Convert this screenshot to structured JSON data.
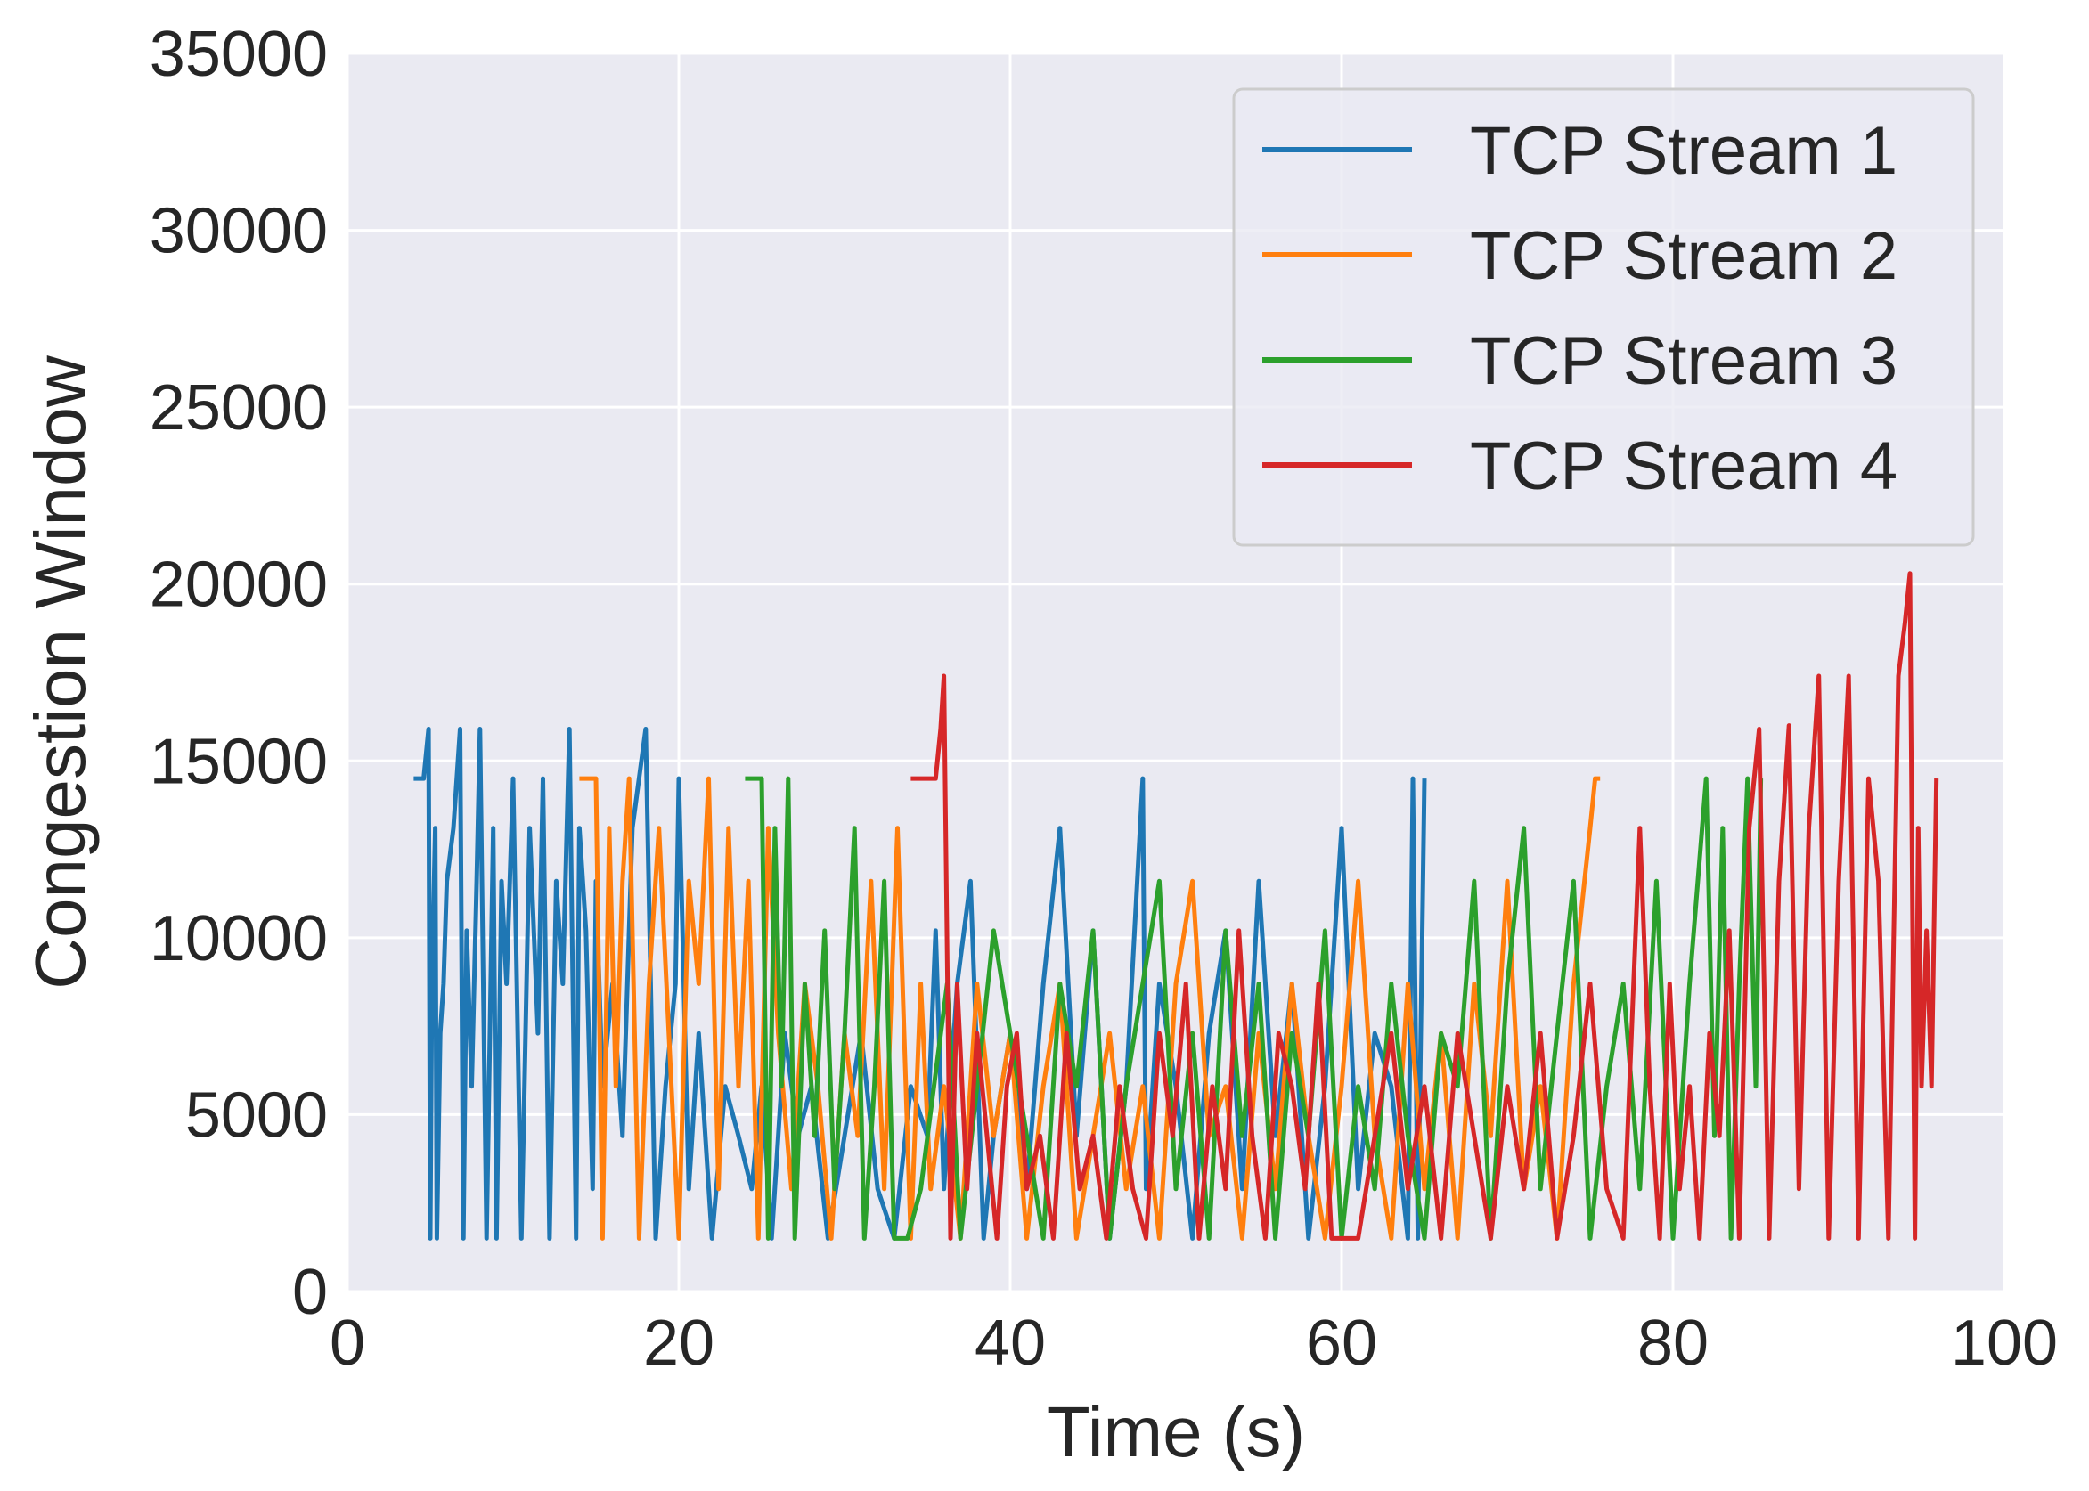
{
  "chart_data": {
    "type": "line",
    "title": "",
    "xlabel": "Time (s)",
    "ylabel": "Congestion Window",
    "xlim": [
      0,
      100
    ],
    "ylim": [
      0,
      35000
    ],
    "xticks": [
      0,
      20,
      40,
      60,
      80,
      100
    ],
    "yticks": [
      0,
      5000,
      10000,
      15000,
      20000,
      25000,
      30000,
      35000
    ],
    "xtick_labels": [
      "0",
      "20",
      "40",
      "60",
      "80",
      "100"
    ],
    "ytick_labels": [
      "0",
      "5000",
      "10000",
      "15000",
      "20000",
      "25000",
      "30000",
      "35000"
    ],
    "grid": true,
    "legend_position": "top-right",
    "style": {
      "background": "#EAEAF2",
      "grid_color": "#FFFFFF"
    },
    "series": [
      {
        "name": "TCP Stream 1",
        "color": "#1F77B4",
        "x": [
          4.0,
          4.6,
          4.9,
          5.0,
          5.1,
          5.3,
          5.4,
          5.6,
          5.8,
          6.0,
          6.4,
          6.8,
          7.0,
          7.2,
          7.5,
          7.8,
          8.0,
          8.4,
          8.8,
          9.0,
          9.3,
          9.6,
          10.0,
          10.5,
          11.0,
          11.5,
          11.8,
          12.2,
          12.6,
          13.0,
          13.4,
          13.8,
          14.0,
          14.4,
          14.8,
          15.0,
          15.4,
          16.0,
          16.6,
          17.2,
          18.0,
          18.6,
          19.2,
          19.8,
          20.0,
          20.6,
          21.2,
          22.0,
          22.8,
          23.6,
          24.4,
          25.0,
          25.6,
          26.4,
          27.2,
          28.0,
          29.0,
          30.0,
          31.0,
          32.0,
          33.0,
          34.0,
          35.0,
          35.5,
          36.0,
          36.8,
          37.6,
          38.4,
          39.0,
          40.0,
          41.0,
          42.0,
          43.0,
          44.0,
          45.0,
          46.0,
          47.0,
          48.0,
          48.2,
          49.0,
          50.0,
          51.0,
          52.0,
          53.0,
          54.0,
          55.0,
          56.0,
          57.0,
          58.0,
          59.0,
          60.0,
          61.0,
          62.0,
          63.0,
          64.0,
          64.3,
          64.6,
          65.0
        ],
        "y": [
          14500,
          14500,
          15900,
          1500,
          8700,
          13100,
          1500,
          7300,
          8700,
          11600,
          13100,
          15900,
          1500,
          10200,
          5800,
          11600,
          15900,
          1500,
          13100,
          1500,
          11600,
          8700,
          14500,
          1500,
          13100,
          7300,
          14500,
          1500,
          11600,
          8700,
          15900,
          1500,
          13100,
          10200,
          2900,
          11600,
          5800,
          8700,
          4400,
          13100,
          15900,
          1500,
          5800,
          8700,
          14500,
          2900,
          7300,
          1500,
          5800,
          4400,
          2900,
          5800,
          1500,
          7300,
          4400,
          5800,
          1500,
          4400,
          7300,
          2900,
          1500,
          5800,
          4400,
          10200,
          2900,
          8700,
          11600,
          1500,
          4400,
          7300,
          2900,
          8700,
          13100,
          4400,
          10200,
          1500,
          5800,
          14500,
          2900,
          8700,
          5800,
          1500,
          7300,
          10200,
          2900,
          11600,
          4400,
          8700,
          1500,
          5800,
          13100,
          2900,
          7300,
          5800,
          1500,
          14500,
          1500,
          14500
        ]
      },
      {
        "name": "TCP Stream 2",
        "color": "#FF7F0E",
        "x": [
          14.0,
          15.0,
          15.4,
          15.8,
          16.2,
          16.6,
          17.0,
          17.6,
          18.2,
          18.8,
          19.4,
          20.0,
          20.6,
          21.2,
          21.8,
          22.4,
          23.0,
          23.6,
          24.2,
          24.8,
          25.4,
          26.0,
          26.8,
          27.6,
          28.4,
          29.2,
          30.0,
          30.8,
          31.6,
          32.4,
          33.2,
          34.0,
          34.6,
          35.2,
          36.0,
          37.0,
          38.0,
          39.0,
          40.0,
          41.0,
          42.0,
          43.0,
          44.0,
          45.0,
          46.0,
          47.0,
          48.0,
          49.0,
          50.0,
          51.0,
          52.0,
          53.0,
          54.0,
          55.0,
          56.0,
          57.0,
          58.0,
          59.0,
          60.0,
          61.0,
          62.0,
          63.0,
          64.0,
          65.0,
          66.0,
          67.0,
          68.0,
          69.0,
          70.0,
          71.0,
          72.0,
          73.0,
          74.0,
          75.0,
          75.3,
          75.6
        ],
        "y": [
          14500,
          14500,
          1500,
          13100,
          5800,
          11600,
          14500,
          1500,
          8700,
          13100,
          7300,
          1500,
          11600,
          8700,
          14500,
          2900,
          13100,
          5800,
          11600,
          1500,
          13100,
          7300,
          2900,
          8700,
          5800,
          1500,
          7300,
          4400,
          11600,
          2900,
          13100,
          1500,
          8700,
          2900,
          5800,
          1500,
          8700,
          4400,
          7300,
          1500,
          5800,
          8700,
          1500,
          4400,
          7300,
          2900,
          5800,
          1500,
          8700,
          11600,
          4400,
          5800,
          1500,
          7300,
          2900,
          8700,
          4400,
          1500,
          5800,
          11600,
          4400,
          1500,
          8700,
          2900,
          7300,
          1500,
          8700,
          4400,
          11600,
          2900,
          5800,
          1500,
          8700,
          13100,
          14500,
          14500
        ]
      },
      {
        "name": "TCP Stream 3",
        "color": "#2CA02C",
        "x": [
          24.0,
          25.0,
          25.4,
          25.8,
          26.2,
          26.6,
          27.0,
          27.6,
          28.2,
          28.8,
          29.4,
          30.0,
          30.6,
          31.2,
          31.8,
          32.4,
          33.0,
          33.8,
          34.6,
          35.4,
          36.2,
          37.0,
          38.0,
          39.0,
          40.0,
          41.0,
          42.0,
          43.0,
          44.0,
          45.0,
          46.0,
          47.0,
          48.0,
          49.0,
          50.0,
          51.0,
          52.0,
          53.0,
          54.0,
          55.0,
          56.0,
          57.0,
          58.0,
          59.0,
          60.0,
          61.0,
          62.0,
          63.0,
          64.0,
          65.0,
          66.0,
          67.0,
          68.0,
          69.0,
          70.0,
          71.0,
          72.0,
          73.0,
          74.0,
          75.0,
          76.0,
          77.0,
          78.0,
          79.0,
          80.0,
          81.0,
          82.0,
          82.5,
          83.0,
          83.5,
          84.0,
          84.5,
          85.0,
          85.3
        ],
        "y": [
          14500,
          14500,
          1500,
          13100,
          5800,
          14500,
          1500,
          8700,
          4400,
          10200,
          2900,
          7300,
          13100,
          1500,
          5800,
          11600,
          1500,
          1500,
          2900,
          5800,
          8700,
          1500,
          5800,
          10200,
          7300,
          4400,
          1500,
          8700,
          5800,
          10200,
          1500,
          5800,
          8700,
          11600,
          2900,
          7300,
          1500,
          10200,
          4400,
          8700,
          1500,
          7300,
          4400,
          10200,
          1500,
          5800,
          2900,
          8700,
          4400,
          1500,
          7300,
          5800,
          11600,
          1500,
          8700,
          13100,
          2900,
          7300,
          11600,
          1500,
          5800,
          8700,
          2900,
          11600,
          1500,
          8700,
          14500,
          4400,
          13100,
          1500,
          8700,
          14500,
          5800,
          14500
        ]
      },
      {
        "name": "TCP Stream 4",
        "color": "#D62728",
        "x": [
          34.0,
          35.5,
          35.8,
          36.0,
          36.4,
          36.8,
          37.4,
          38.0,
          38.6,
          39.2,
          39.8,
          40.4,
          41.0,
          41.8,
          42.6,
          43.4,
          44.2,
          45.0,
          45.8,
          46.6,
          47.4,
          48.2,
          49.0,
          49.8,
          50.6,
          51.4,
          52.2,
          53.0,
          53.8,
          54.6,
          55.4,
          56.2,
          57.0,
          57.8,
          58.6,
          59.4,
          60.0,
          61.0,
          62.0,
          63.0,
          64.0,
          65.0,
          66.0,
          67.0,
          68.0,
          69.0,
          70.0,
          71.0,
          72.0,
          73.0,
          74.0,
          75.0,
          76.0,
          77.0,
          78.0,
          78.6,
          79.2,
          79.8,
          80.4,
          81.0,
          81.6,
          82.2,
          82.8,
          83.4,
          84.0,
          84.6,
          85.2,
          85.8,
          86.4,
          87.0,
          87.6,
          88.2,
          88.8,
          89.4,
          90.0,
          90.6,
          91.2,
          91.8,
          92.4,
          93.0,
          93.6,
          94.0,
          94.3,
          94.6,
          94.8,
          95.0,
          95.3,
          95.6,
          95.9
        ],
        "y": [
          14500,
          14500,
          15900,
          17400,
          1500,
          8700,
          2900,
          7300,
          4400,
          1500,
          5800,
          7300,
          2900,
          4400,
          1500,
          7300,
          2900,
          4400,
          1500,
          5800,
          2900,
          1500,
          7300,
          4400,
          8700,
          1500,
          5800,
          2900,
          10200,
          4400,
          1500,
          7300,
          5800,
          2900,
          8700,
          1500,
          1500,
          1500,
          4400,
          7300,
          2900,
          5800,
          1500,
          7300,
          4400,
          1500,
          5800,
          2900,
          7300,
          1500,
          4400,
          8700,
          2900,
          1500,
          13100,
          5800,
          1500,
          8700,
          2900,
          5800,
          1500,
          7300,
          4400,
          10200,
          1500,
          13100,
          15900,
          1500,
          11600,
          16000,
          2900,
          13100,
          17400,
          1500,
          11600,
          17400,
          1500,
          14500,
          11600,
          1500,
          17400,
          18900,
          20300,
          1500,
          13100,
          5800,
          10200,
          5800,
          14500
        ]
      }
    ]
  }
}
